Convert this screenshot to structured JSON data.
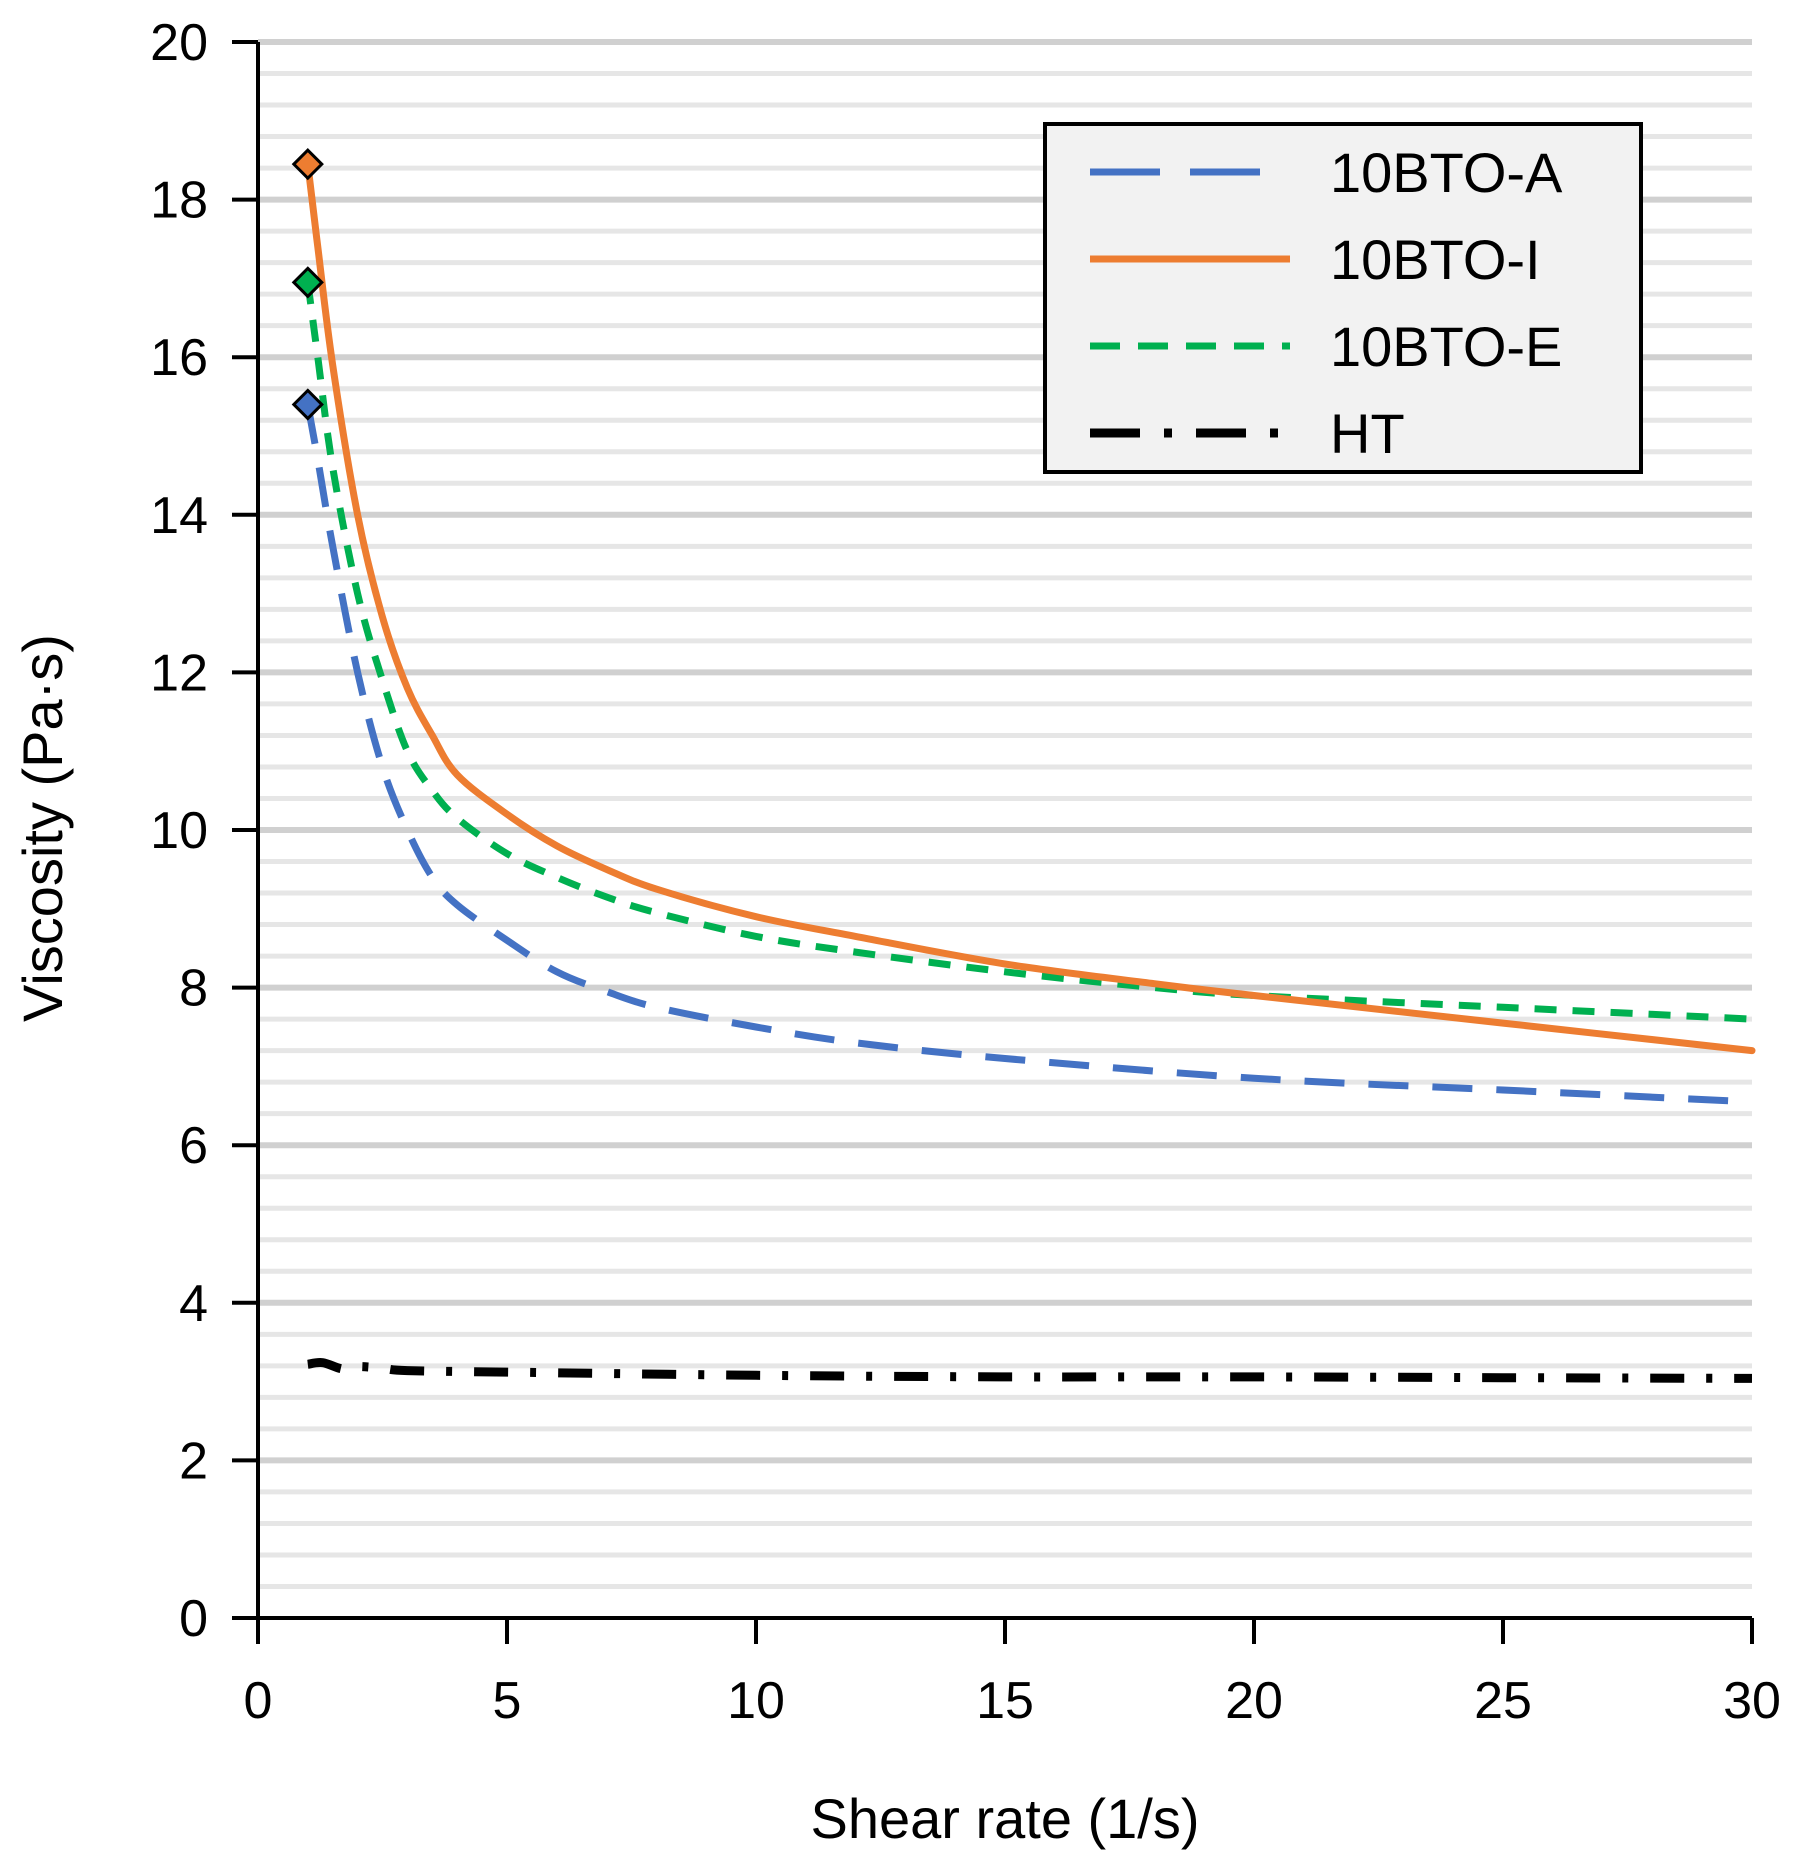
{
  "chart_data": {
    "type": "line",
    "title": "",
    "xlabel": "Shear rate (1/s)",
    "ylabel": "Viscosity (Pa·s)",
    "xlim": [
      0,
      30
    ],
    "ylim": [
      0,
      20
    ],
    "xticks": [
      0,
      5,
      10,
      15,
      20,
      25,
      30
    ],
    "yticks": [
      0,
      2,
      4,
      6,
      8,
      10,
      12,
      14,
      16,
      18,
      20
    ],
    "grid": "horizontal major and minor",
    "legend_position": "top-right",
    "series": [
      {
        "name": "10BTO-A",
        "color": "#4472C4",
        "style": "long-dash",
        "marker_first": "diamond",
        "x": [
          1,
          1.2,
          1.5,
          2,
          2.5,
          3,
          3.5,
          4,
          5,
          6,
          7,
          8,
          10,
          12,
          15,
          20,
          25,
          30
        ],
        "y": [
          15.4,
          14.7,
          13.6,
          12.0,
          10.8,
          10.0,
          9.4,
          9.05,
          8.6,
          8.2,
          7.95,
          7.75,
          7.5,
          7.3,
          7.1,
          6.85,
          6.7,
          6.55
        ]
      },
      {
        "name": "10BTO-I",
        "color": "#ED7D31",
        "style": "solid",
        "marker_first": "diamond",
        "x": [
          1,
          1.2,
          1.5,
          2,
          2.5,
          3,
          3.5,
          4,
          5,
          6,
          7,
          8,
          10,
          12,
          15,
          18,
          20,
          25,
          30
        ],
        "y": [
          18.45,
          17.4,
          15.9,
          14.0,
          12.7,
          11.8,
          11.2,
          10.7,
          10.2,
          9.8,
          9.5,
          9.25,
          8.9,
          8.65,
          8.3,
          8.05,
          7.9,
          7.55,
          7.2
        ]
      },
      {
        "name": "10BTO-E",
        "color": "#00B050",
        "style": "short-dash",
        "marker_first": "diamond",
        "x": [
          1,
          1.2,
          1.5,
          2,
          2.5,
          3,
          3.5,
          4,
          5,
          6,
          7,
          8,
          10,
          12,
          15,
          18,
          20,
          25,
          30
        ],
        "y": [
          16.95,
          16.0,
          14.6,
          13.0,
          11.9,
          11.0,
          10.5,
          10.15,
          9.7,
          9.4,
          9.15,
          8.95,
          8.65,
          8.45,
          8.2,
          8.0,
          7.9,
          7.75,
          7.6
        ]
      },
      {
        "name": "HT",
        "color": "#000000",
        "style": "dash-dot",
        "marker_first": "none",
        "x": [
          1,
          1.3,
          1.7,
          2,
          2.5,
          3,
          5,
          10,
          15,
          20,
          25,
          30
        ],
        "y": [
          3.22,
          3.24,
          3.16,
          3.19,
          3.17,
          3.14,
          3.12,
          3.08,
          3.06,
          3.06,
          3.05,
          3.04
        ]
      }
    ]
  }
}
